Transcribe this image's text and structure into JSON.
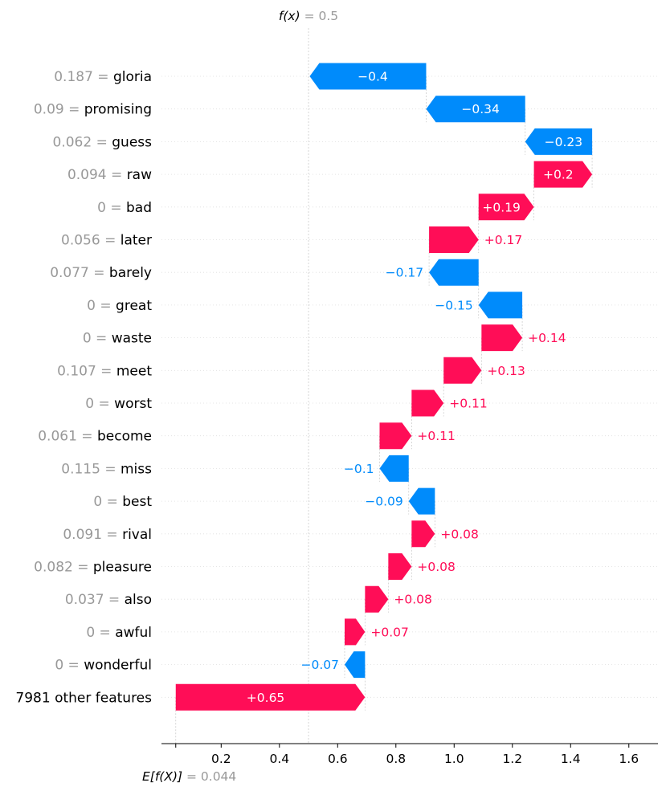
{
  "chart_data": {
    "type": "waterfall",
    "base_label_prefix": "E[f(X)]",
    "base_label_eq": " = ",
    "base_value_text": "0.044",
    "base_value": 0.044,
    "fx_label_prefix": "f(x)",
    "fx_label_eq": " = ",
    "fx_value_text": "0.5",
    "fx_value": 0.5,
    "xlim": [
      -0.005,
      1.7
    ],
    "xticks": [
      {
        "value": 0.2,
        "label": "0.2"
      },
      {
        "value": 0.4,
        "label": "0.4"
      },
      {
        "value": 0.6,
        "label": "0.6"
      },
      {
        "value": 0.8,
        "label": "0.8"
      },
      {
        "value": 1.0,
        "label": "1.0"
      },
      {
        "value": 1.2,
        "label": "1.2"
      },
      {
        "value": 1.4,
        "label": "1.4"
      },
      {
        "value": 1.6,
        "label": "1.6"
      }
    ],
    "features": [
      {
        "value_text": "0.187",
        "name": "gloria",
        "shap": -0.4,
        "shap_text": "−0.4"
      },
      {
        "value_text": "0.09",
        "name": "promising",
        "shap": -0.34,
        "shap_text": "−0.34"
      },
      {
        "value_text": "0.062",
        "name": "guess",
        "shap": -0.23,
        "shap_text": "−0.23"
      },
      {
        "value_text": "0.094",
        "name": "raw",
        "shap": 0.2,
        "shap_text": "+0.2"
      },
      {
        "value_text": "0",
        "name": "bad",
        "shap": 0.19,
        "shap_text": "+0.19"
      },
      {
        "value_text": "0.056",
        "name": "later",
        "shap": 0.17,
        "shap_text": "+0.17"
      },
      {
        "value_text": "0.077",
        "name": "barely",
        "shap": -0.17,
        "shap_text": "−0.17"
      },
      {
        "value_text": "0",
        "name": "great",
        "shap": -0.15,
        "shap_text": "−0.15"
      },
      {
        "value_text": "0",
        "name": "waste",
        "shap": 0.14,
        "shap_text": "+0.14"
      },
      {
        "value_text": "0.107",
        "name": "meet",
        "shap": 0.13,
        "shap_text": "+0.13"
      },
      {
        "value_text": "0",
        "name": "worst",
        "shap": 0.11,
        "shap_text": "+0.11"
      },
      {
        "value_text": "0.061",
        "name": "become",
        "shap": 0.11,
        "shap_text": "+0.11"
      },
      {
        "value_text": "0.115",
        "name": "miss",
        "shap": -0.1,
        "shap_text": "−0.1"
      },
      {
        "value_text": "0",
        "name": "best",
        "shap": -0.09,
        "shap_text": "−0.09"
      },
      {
        "value_text": "0.091",
        "name": "rival",
        "shap": 0.08,
        "shap_text": "+0.08"
      },
      {
        "value_text": "0.082",
        "name": "pleasure",
        "shap": 0.08,
        "shap_text": "+0.08"
      },
      {
        "value_text": "0.037",
        "name": "also",
        "shap": 0.08,
        "shap_text": "+0.08"
      },
      {
        "value_text": "0",
        "name": "awful",
        "shap": 0.07,
        "shap_text": "+0.07"
      },
      {
        "value_text": "0",
        "name": "wonderful",
        "shap": -0.07,
        "shap_text": "−0.07"
      },
      {
        "value_text": "",
        "name": "7981 other features",
        "shap": 0.65,
        "shap_text": "+0.65"
      }
    ],
    "colors": {
      "positive": "#ff0d57",
      "negative": "#008bfb",
      "label_gray": "#999999",
      "text": "#000000",
      "guide": "#cccccc"
    }
  }
}
